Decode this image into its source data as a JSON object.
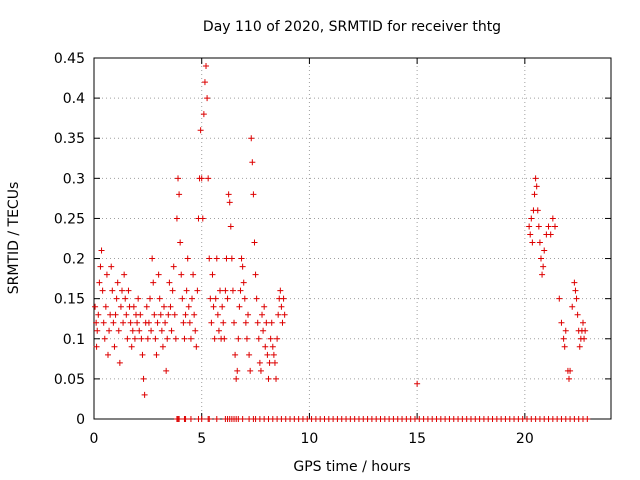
{
  "chart_data": {
    "type": "scatter",
    "title": "Day 110 of 2020, SRMTID for receiver thtg",
    "xlabel": "GPS time / hours",
    "ylabel": "SRMTID / TECUs",
    "xlim": [
      0,
      24
    ],
    "ylim": [
      0,
      0.45
    ],
    "grid": true,
    "marker": "+",
    "marker_color": "#dd0000",
    "xticks": [
      0,
      5,
      10,
      15,
      20
    ],
    "xtick_labels": [
      "0",
      "5",
      "10",
      "15",
      "20"
    ],
    "yticks": [
      0,
      0.05,
      0.1,
      0.15,
      0.2,
      0.25,
      0.3,
      0.35,
      0.4,
      0.45
    ],
    "ytick_labels": [
      "0",
      "0.05",
      "0.1",
      "0.15",
      "0.2",
      "0.25",
      "0.3",
      "0.35",
      "0.4",
      "0.45"
    ],
    "series": [
      {
        "name": "SRMTID",
        "points": [
          [
            0.05,
            0.14
          ],
          [
            0.1,
            0.12
          ],
          [
            0.12,
            0.09
          ],
          [
            0.15,
            0.11
          ],
          [
            0.2,
            0.13
          ],
          [
            0.25,
            0.17
          ],
          [
            0.3,
            0.19
          ],
          [
            0.35,
            0.21
          ],
          [
            0.4,
            0.16
          ],
          [
            0.45,
            0.12
          ],
          [
            0.5,
            0.1
          ],
          [
            0.55,
            0.14
          ],
          [
            0.6,
            0.18
          ],
          [
            0.65,
            0.08
          ],
          [
            0.7,
            0.11
          ],
          [
            0.75,
            0.13
          ],
          [
            0.8,
            0.19
          ],
          [
            0.85,
            0.16
          ],
          [
            0.9,
            0.12
          ],
          [
            0.95,
            0.09
          ],
          [
            1.0,
            0.13
          ],
          [
            1.05,
            0.15
          ],
          [
            1.1,
            0.17
          ],
          [
            1.15,
            0.11
          ],
          [
            1.2,
            0.07
          ],
          [
            1.25,
            0.14
          ],
          [
            1.3,
            0.16
          ],
          [
            1.35,
            0.12
          ],
          [
            1.4,
            0.18
          ],
          [
            1.45,
            0.15
          ],
          [
            1.5,
            0.13
          ],
          [
            1.55,
            0.1
          ],
          [
            1.6,
            0.16
          ],
          [
            1.65,
            0.14
          ],
          [
            1.7,
            0.12
          ],
          [
            1.75,
            0.09
          ],
          [
            1.8,
            0.11
          ],
          [
            1.85,
            0.14
          ],
          [
            1.9,
            0.1
          ],
          [
            1.95,
            0.13
          ],
          [
            2.0,
            0.12
          ],
          [
            2.05,
            0.15
          ],
          [
            2.1,
            0.11
          ],
          [
            2.15,
            0.13
          ],
          [
            2.2,
            0.1
          ],
          [
            2.25,
            0.08
          ],
          [
            2.3,
            0.05
          ],
          [
            2.35,
            0.03
          ],
          [
            2.4,
            0.12
          ],
          [
            2.45,
            0.14
          ],
          [
            2.5,
            0.1
          ],
          [
            2.55,
            0.12
          ],
          [
            2.6,
            0.15
          ],
          [
            2.65,
            0.11
          ],
          [
            2.7,
            0.2
          ],
          [
            2.75,
            0.17
          ],
          [
            2.8,
            0.13
          ],
          [
            2.85,
            0.1
          ],
          [
            2.9,
            0.08
          ],
          [
            2.95,
            0.12
          ],
          [
            3.0,
            0.18
          ],
          [
            3.05,
            0.15
          ],
          [
            3.1,
            0.13
          ],
          [
            3.15,
            0.11
          ],
          [
            3.2,
            0.09
          ],
          [
            3.25,
            0.14
          ],
          [
            3.3,
            0.12
          ],
          [
            3.35,
            0.06
          ],
          [
            3.4,
            0.1
          ],
          [
            3.45,
            0.13
          ],
          [
            3.5,
            0.17
          ],
          [
            3.55,
            0.14
          ],
          [
            3.6,
            0.11
          ],
          [
            3.65,
            0.16
          ],
          [
            3.7,
            0.19
          ],
          [
            3.75,
            0.13
          ],
          [
            3.8,
            0.1
          ],
          [
            3.85,
            0.25
          ],
          [
            3.9,
            0.3
          ],
          [
            3.95,
            0.28
          ],
          [
            4.0,
            0.22
          ],
          [
            4.05,
            0.18
          ],
          [
            4.1,
            0.15
          ],
          [
            4.15,
            0.12
          ],
          [
            4.2,
            0.1
          ],
          [
            4.25,
            0.13
          ],
          [
            4.3,
            0.16
          ],
          [
            4.35,
            0.2
          ],
          [
            4.4,
            0.14
          ],
          [
            4.45,
            0.12
          ],
          [
            4.5,
            0.1
          ],
          [
            4.55,
            0.15
          ],
          [
            4.6,
            0.18
          ],
          [
            4.65,
            0.13
          ],
          [
            4.7,
            0.11
          ],
          [
            4.75,
            0.09
          ],
          [
            4.8,
            0.16
          ],
          [
            4.85,
            0.25
          ],
          [
            4.9,
            0.3
          ],
          [
            4.95,
            0.36
          ],
          [
            5.0,
            0.3
          ],
          [
            5.05,
            0.25
          ],
          [
            5.1,
            0.38
          ],
          [
            5.15,
            0.42
          ],
          [
            5.2,
            0.44
          ],
          [
            5.25,
            0.4
          ],
          [
            5.3,
            0.3
          ],
          [
            5.35,
            0.2
          ],
          [
            5.4,
            0.15
          ],
          [
            5.45,
            0.12
          ],
          [
            5.5,
            0.18
          ],
          [
            5.55,
            0.14
          ],
          [
            5.6,
            0.1
          ],
          [
            5.65,
            0.15
          ],
          [
            5.7,
            0.2
          ],
          [
            5.75,
            0.13
          ],
          [
            5.8,
            0.11
          ],
          [
            5.85,
            0.16
          ],
          [
            5.9,
            0.1
          ],
          [
            5.95,
            0.14
          ],
          [
            6.0,
            0.12
          ],
          [
            6.05,
            0.1
          ],
          [
            6.1,
            0.16
          ],
          [
            6.15,
            0.2
          ],
          [
            6.2,
            0.15
          ],
          [
            6.25,
            0.28
          ],
          [
            6.3,
            0.27
          ],
          [
            6.35,
            0.24
          ],
          [
            6.4,
            0.2
          ],
          [
            6.45,
            0.16
          ],
          [
            6.5,
            0.12
          ],
          [
            6.55,
            0.08
          ],
          [
            6.6,
            0.05
          ],
          [
            6.65,
            0.06
          ],
          [
            6.7,
            0.1
          ],
          [
            6.75,
            0.14
          ],
          [
            6.8,
            0.16
          ],
          [
            6.85,
            0.2
          ],
          [
            6.9,
            0.19
          ],
          [
            6.95,
            0.17
          ],
          [
            7.0,
            0.15
          ],
          [
            7.05,
            0.12
          ],
          [
            7.1,
            0.1
          ],
          [
            7.15,
            0.13
          ],
          [
            7.2,
            0.08
          ],
          [
            7.25,
            0.06
          ],
          [
            7.3,
            0.35
          ],
          [
            7.35,
            0.32
          ],
          [
            7.4,
            0.28
          ],
          [
            7.45,
            0.22
          ],
          [
            7.5,
            0.18
          ],
          [
            7.55,
            0.15
          ],
          [
            7.6,
            0.12
          ],
          [
            7.65,
            0.1
          ],
          [
            7.7,
            0.07
          ],
          [
            7.75,
            0.06
          ],
          [
            7.8,
            0.13
          ],
          [
            7.85,
            0.11
          ],
          [
            7.9,
            0.14
          ],
          [
            7.95,
            0.09
          ],
          [
            8.0,
            0.12
          ],
          [
            8.05,
            0.08
          ],
          [
            8.1,
            0.05
          ],
          [
            8.15,
            0.07
          ],
          [
            8.2,
            0.1
          ],
          [
            8.25,
            0.12
          ],
          [
            8.3,
            0.09
          ],
          [
            8.35,
            0.08
          ],
          [
            8.4,
            0.07
          ],
          [
            8.45,
            0.05
          ],
          [
            8.5,
            0.1
          ],
          [
            8.55,
            0.13
          ],
          [
            8.6,
            0.15
          ],
          [
            8.65,
            0.16
          ],
          [
            8.7,
            0.14
          ],
          [
            8.75,
            0.12
          ],
          [
            8.8,
            0.15
          ],
          [
            8.85,
            0.13
          ],
          [
            15.0,
            0.044
          ],
          [
            20.2,
            0.24
          ],
          [
            20.25,
            0.23
          ],
          [
            20.3,
            0.25
          ],
          [
            20.35,
            0.22
          ],
          [
            20.4,
            0.26
          ],
          [
            20.45,
            0.28
          ],
          [
            20.5,
            0.3
          ],
          [
            20.55,
            0.29
          ],
          [
            20.6,
            0.26
          ],
          [
            20.65,
            0.24
          ],
          [
            20.7,
            0.22
          ],
          [
            20.75,
            0.2
          ],
          [
            20.8,
            0.18
          ],
          [
            20.85,
            0.19
          ],
          [
            20.9,
            0.21
          ],
          [
            21.0,
            0.23
          ],
          [
            21.1,
            0.24
          ],
          [
            21.2,
            0.23
          ],
          [
            21.3,
            0.25
          ],
          [
            21.4,
            0.24
          ],
          [
            21.6,
            0.15
          ],
          [
            21.7,
            0.12
          ],
          [
            21.8,
            0.1
          ],
          [
            21.85,
            0.09
          ],
          [
            21.9,
            0.11
          ],
          [
            22.0,
            0.06
          ],
          [
            22.05,
            0.05
          ],
          [
            22.1,
            0.06
          ],
          [
            22.2,
            0.14
          ],
          [
            22.3,
            0.17
          ],
          [
            22.35,
            0.16
          ],
          [
            22.4,
            0.15
          ],
          [
            22.45,
            0.13
          ],
          [
            22.5,
            0.11
          ],
          [
            22.55,
            0.09
          ],
          [
            22.6,
            0.1
          ],
          [
            22.65,
            0.11
          ],
          [
            22.7,
            0.12
          ],
          [
            22.75,
            0.1
          ],
          [
            22.8,
            0.11
          ],
          [
            3.85,
            0.0
          ],
          [
            3.9,
            0.0
          ],
          [
            3.95,
            0.0
          ],
          [
            4.2,
            0.0
          ],
          [
            4.25,
            0.0
          ],
          [
            4.5,
            0.0
          ],
          [
            4.85,
            0.0
          ],
          [
            5.0,
            0.0
          ],
          [
            5.3,
            0.0
          ],
          [
            5.35,
            0.0
          ],
          [
            5.7,
            0.0
          ],
          [
            6.1,
            0.0
          ],
          [
            6.2,
            0.0
          ],
          [
            6.3,
            0.0
          ],
          [
            6.4,
            0.0
          ],
          [
            6.5,
            0.0
          ],
          [
            6.6,
            0.0
          ],
          [
            6.7,
            0.0
          ],
          [
            6.9,
            0.0
          ],
          [
            7.2,
            0.0
          ],
          [
            7.4,
            0.0
          ],
          [
            7.5,
            0.0
          ],
          [
            7.7,
            0.0
          ],
          [
            7.9,
            0.0
          ],
          [
            8.1,
            0.0
          ],
          [
            8.3,
            0.0
          ],
          [
            8.5,
            0.0
          ],
          [
            8.7,
            0.0
          ],
          [
            8.9,
            0.0
          ],
          [
            9.1,
            0.0
          ],
          [
            9.3,
            0.0
          ],
          [
            9.5,
            0.0
          ],
          [
            9.7,
            0.0
          ],
          [
            9.9,
            0.0
          ],
          [
            10.1,
            0.0
          ],
          [
            10.3,
            0.0
          ],
          [
            10.5,
            0.0
          ],
          [
            10.7,
            0.0
          ],
          [
            10.9,
            0.0
          ],
          [
            11.1,
            0.0
          ],
          [
            11.3,
            0.0
          ],
          [
            11.5,
            0.0
          ],
          [
            11.7,
            0.0
          ],
          [
            11.9,
            0.0
          ],
          [
            12.1,
            0.0
          ],
          [
            12.3,
            0.0
          ],
          [
            12.5,
            0.0
          ],
          [
            12.7,
            0.0
          ],
          [
            12.9,
            0.0
          ],
          [
            13.1,
            0.0
          ],
          [
            13.3,
            0.0
          ],
          [
            13.5,
            0.0
          ],
          [
            13.7,
            0.0
          ],
          [
            13.9,
            0.0
          ],
          [
            14.1,
            0.0
          ],
          [
            14.3,
            0.0
          ],
          [
            14.5,
            0.0
          ],
          [
            14.7,
            0.0
          ],
          [
            14.9,
            0.0
          ],
          [
            15.1,
            0.0
          ],
          [
            15.3,
            0.0
          ],
          [
            15.5,
            0.0
          ],
          [
            15.7,
            0.0
          ],
          [
            15.9,
            0.0
          ],
          [
            16.1,
            0.0
          ],
          [
            16.3,
            0.0
          ],
          [
            16.5,
            0.0
          ],
          [
            16.7,
            0.0
          ],
          [
            16.9,
            0.0
          ],
          [
            17.1,
            0.0
          ],
          [
            17.3,
            0.0
          ],
          [
            17.5,
            0.0
          ],
          [
            17.7,
            0.0
          ],
          [
            17.9,
            0.0
          ],
          [
            18.1,
            0.0
          ],
          [
            18.3,
            0.0
          ],
          [
            18.5,
            0.0
          ],
          [
            18.7,
            0.0
          ],
          [
            18.9,
            0.0
          ],
          [
            19.1,
            0.0
          ],
          [
            19.3,
            0.0
          ],
          [
            19.5,
            0.0
          ],
          [
            19.7,
            0.0
          ],
          [
            19.9,
            0.0
          ],
          [
            20.1,
            0.0
          ],
          [
            20.3,
            0.0
          ],
          [
            20.5,
            0.0
          ],
          [
            20.7,
            0.0
          ],
          [
            20.9,
            0.0
          ],
          [
            21.1,
            0.0
          ],
          [
            21.3,
            0.0
          ],
          [
            21.5,
            0.0
          ],
          [
            21.7,
            0.0
          ],
          [
            21.9,
            0.0
          ],
          [
            22.1,
            0.0
          ],
          [
            22.3,
            0.0
          ],
          [
            22.5,
            0.0
          ],
          [
            22.7,
            0.0
          ],
          [
            22.9,
            0.0
          ]
        ]
      }
    ]
  }
}
